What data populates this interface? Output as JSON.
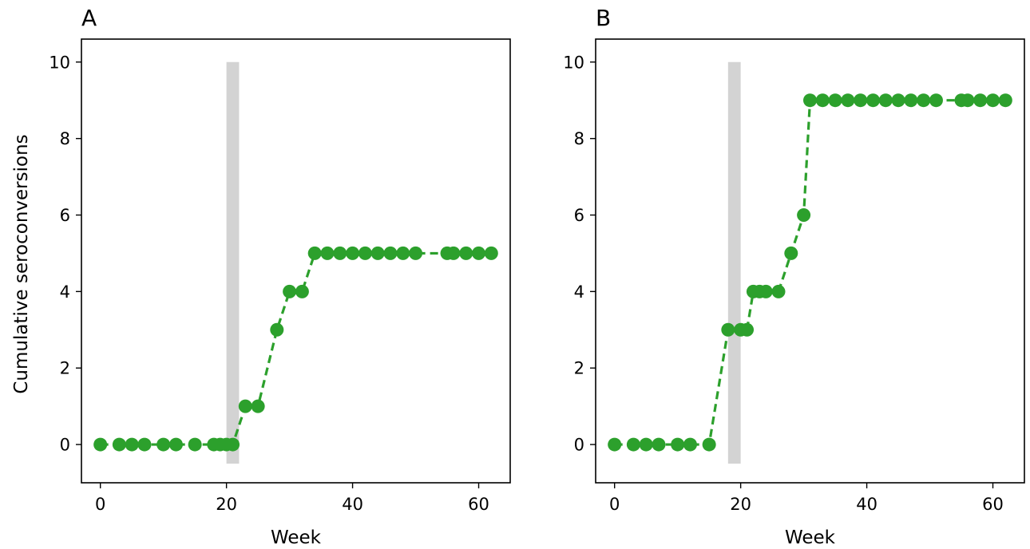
{
  "colors": {
    "series": "#2ca02c",
    "shade": "#d3d3d3",
    "axes": "#000000"
  },
  "chart_data": [
    {
      "type": "line",
      "panel_label": "A",
      "xlabel": "Week",
      "ylabel": "Cumulative seroconversions",
      "xlim": [
        -3,
        65
      ],
      "ylim": [
        -1,
        10.6
      ],
      "xticks": [
        0,
        20,
        40,
        60
      ],
      "yticks": [
        0,
        2,
        4,
        6,
        8,
        10
      ],
      "shaded_interval": {
        "x": [
          20,
          22
        ],
        "y": [
          -0.5,
          10
        ]
      },
      "grid": false,
      "series": [
        {
          "line_style": "dashed",
          "marker": "circle",
          "points": [
            [
              0,
              0
            ],
            [
              3,
              0
            ],
            [
              5,
              0
            ],
            [
              7,
              0
            ],
            [
              10,
              0
            ],
            [
              12,
              0
            ],
            [
              15,
              0
            ],
            [
              18,
              0
            ],
            [
              19,
              0
            ],
            [
              20,
              0
            ],
            [
              21,
              0
            ],
            [
              23,
              1
            ],
            [
              25,
              1
            ],
            [
              28,
              3
            ],
            [
              30,
              4
            ],
            [
              32,
              4
            ],
            [
              34,
              5
            ],
            [
              36,
              5
            ],
            [
              38,
              5
            ],
            [
              40,
              5
            ],
            [
              42,
              5
            ],
            [
              44,
              5
            ],
            [
              46,
              5
            ],
            [
              48,
              5
            ],
            [
              50,
              5
            ],
            [
              55,
              5
            ],
            [
              56,
              5
            ],
            [
              58,
              5
            ],
            [
              60,
              5
            ],
            [
              62,
              5
            ]
          ]
        }
      ]
    },
    {
      "type": "line",
      "panel_label": "B",
      "xlabel": "Week",
      "ylabel": "",
      "xlim": [
        -3,
        65
      ],
      "ylim": [
        -1,
        10.6
      ],
      "xticks": [
        0,
        20,
        40,
        60
      ],
      "yticks": [
        0,
        2,
        4,
        6,
        8,
        10
      ],
      "shaded_interval": {
        "x": [
          18,
          20
        ],
        "y": [
          -0.5,
          10
        ]
      },
      "grid": false,
      "series": [
        {
          "line_style": "dashed",
          "marker": "circle",
          "points": [
            [
              0,
              0
            ],
            [
              3,
              0
            ],
            [
              5,
              0
            ],
            [
              7,
              0
            ],
            [
              10,
              0
            ],
            [
              12,
              0
            ],
            [
              15,
              0
            ],
            [
              18,
              3
            ],
            [
              20,
              3
            ],
            [
              21,
              3
            ],
            [
              22,
              4
            ],
            [
              23,
              4
            ],
            [
              24,
              4
            ],
            [
              26,
              4
            ],
            [
              28,
              5
            ],
            [
              30,
              6
            ],
            [
              31,
              9
            ],
            [
              33,
              9
            ],
            [
              35,
              9
            ],
            [
              37,
              9
            ],
            [
              39,
              9
            ],
            [
              41,
              9
            ],
            [
              43,
              9
            ],
            [
              45,
              9
            ],
            [
              47,
              9
            ],
            [
              49,
              9
            ],
            [
              51,
              9
            ],
            [
              55,
              9
            ],
            [
              56,
              9
            ],
            [
              58,
              9
            ],
            [
              60,
              9
            ],
            [
              62,
              9
            ]
          ]
        }
      ]
    }
  ]
}
